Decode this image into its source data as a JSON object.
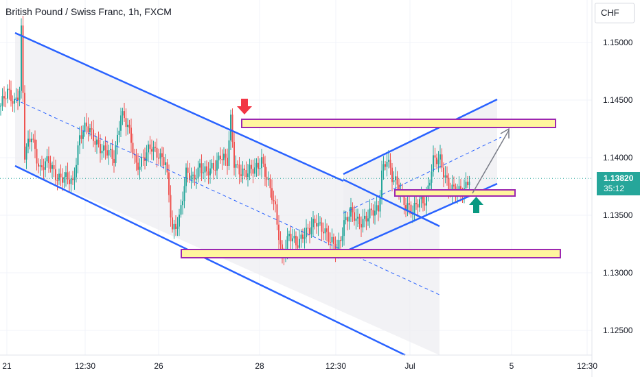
{
  "header": {
    "title": "British Pound / Swiss Franc, 1h, FXCM",
    "currency_button": "CHF"
  },
  "price_label": {
    "price": "1.13820",
    "countdown": "35:12",
    "color": "#26a69a"
  },
  "colors": {
    "up": "#26a69a",
    "down": "#ef5350",
    "channel": "#2962ff",
    "zone_fill": "#fff59d",
    "zone_border": "#9c27b0",
    "arrow_down": "#f23645",
    "arrow_up": "#089981",
    "projection": "#787b86"
  },
  "chart_data": {
    "type": "candlestick",
    "y_axis": {
      "min": 1.1225,
      "max": 1.152,
      "ticks": [
        1.15,
        1.145,
        1.14,
        1.135,
        1.13,
        1.125
      ],
      "tick_labels": [
        "1.15000",
        "1.14500",
        "1.14000",
        "1.13500",
        "1.13000",
        "1.12500"
      ]
    },
    "x_axis": {
      "tick_labels": [
        "21",
        "12:30",
        "26",
        "28",
        "12:30",
        "Jul",
        "5",
        "12:30"
      ]
    },
    "last_price": 1.1382,
    "anchor_closes": [
      [
        0,
        1.1445
      ],
      [
        4,
        1.1455
      ],
      [
        8,
        1.145
      ],
      [
        11,
        1.146
      ],
      [
        12,
        1.151
      ],
      [
        14,
        1.14
      ],
      [
        18,
        1.142
      ],
      [
        23,
        1.139
      ],
      [
        28,
        1.1395
      ],
      [
        33,
        1.1385
      ],
      [
        38,
        1.138
      ],
      [
        42,
        1.1378
      ],
      [
        46,
        1.142
      ],
      [
        50,
        1.1425
      ],
      [
        56,
        1.1415
      ],
      [
        60,
        1.1405
      ],
      [
        66,
        1.14
      ],
      [
        70,
        1.144
      ],
      [
        74,
        1.1425
      ],
      [
        79,
        1.1395
      ],
      [
        84,
        1.14
      ],
      [
        88,
        1.1408
      ],
      [
        92,
        1.1405
      ],
      [
        96,
        1.1395
      ],
      [
        100,
        1.1335
      ],
      [
        104,
        1.135
      ],
      [
        108,
        1.1385
      ],
      [
        112,
        1.138
      ],
      [
        116,
        1.1395
      ],
      [
        120,
        1.1385
      ],
      [
        124,
        1.139
      ],
      [
        128,
        1.1405
      ],
      [
        132,
        1.1395
      ],
      [
        134,
        1.143
      ],
      [
        136,
        1.1395
      ],
      [
        140,
        1.139
      ],
      [
        144,
        1.1385
      ],
      [
        148,
        1.139
      ],
      [
        152,
        1.14
      ],
      [
        156,
        1.1375
      ],
      [
        160,
        1.1355
      ],
      [
        164,
        1.1315
      ],
      [
        168,
        1.133
      ],
      [
        172,
        1.1325
      ],
      [
        176,
        1.1335
      ],
      [
        180,
        1.1335
      ],
      [
        184,
        1.1345
      ],
      [
        188,
        1.134
      ],
      [
        192,
        1.1325
      ],
      [
        196,
        1.132
      ],
      [
        200,
        1.1345
      ],
      [
        204,
        1.135
      ],
      [
        208,
        1.1345
      ],
      [
        212,
        1.1348
      ],
      [
        216,
        1.135
      ],
      [
        220,
        1.1355
      ],
      [
        222,
        1.139
      ],
      [
        225,
        1.14
      ],
      [
        228,
        1.138
      ],
      [
        232,
        1.1375
      ],
      [
        236,
        1.136
      ],
      [
        240,
        1.135
      ],
      [
        244,
        1.1365
      ],
      [
        248,
        1.1365
      ],
      [
        252,
        1.1395
      ],
      [
        256,
        1.14
      ],
      [
        259,
        1.1385
      ],
      [
        262,
        1.137
      ],
      [
        266,
        1.137
      ],
      [
        270,
        1.1375
      ],
      [
        273,
        1.1382
      ]
    ],
    "support_zones": [
      {
        "left": 1.1428,
        "right": 1.1428,
        "top": 1.1433,
        "bottom": 1.1425
      },
      {
        "top": 1.13205,
        "bottom": 1.1314
      },
      {
        "top": 1.13715,
        "bottom": 1.1366
      }
    ]
  }
}
